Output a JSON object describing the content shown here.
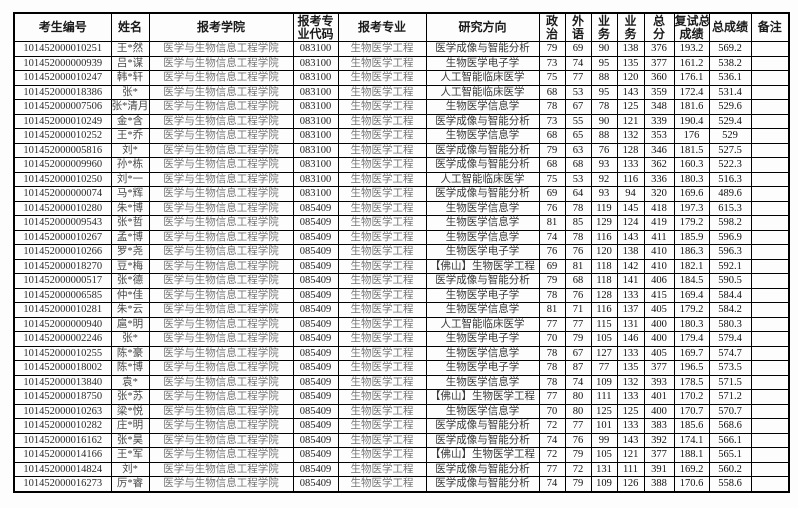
{
  "colors": {
    "background": "#ffffff",
    "table_border": "#000000",
    "header_text": "#1a1a1a",
    "body_text": "#1f1f1f",
    "muted_text": "#777777"
  },
  "table": {
    "column_keys": [
      "candidate-id",
      "name",
      "college",
      "major-code",
      "major",
      "research-direction",
      "politics",
      "foreign-language",
      "major-course-1",
      "major-course-2",
      "total-score",
      "retest-total-score",
      "final-score",
      "remarks"
    ],
    "column_headers": [
      {
        "lines": [
          "考生编号"
        ]
      },
      {
        "lines": [
          "姓名"
        ]
      },
      {
        "lines": [
          "报考学院"
        ]
      },
      {
        "lines": [
          "报考专",
          "业代码"
        ]
      },
      {
        "lines": [
          "报考专业"
        ]
      },
      {
        "lines": [
          "研究方向"
        ]
      },
      {
        "lines": [
          "政",
          "治"
        ]
      },
      {
        "lines": [
          "外",
          "语"
        ]
      },
      {
        "lines": [
          "业",
          "务"
        ]
      },
      {
        "lines": [
          "业",
          "务"
        ]
      },
      {
        "lines": [
          "总",
          "分"
        ]
      },
      {
        "lines": [
          "复试总",
          "成绩"
        ]
      },
      {
        "lines": [
          "总成绩"
        ]
      },
      {
        "lines": [
          "备注"
        ]
      }
    ],
    "rows": [
      [
        "101452000010251",
        "王*然",
        "医学与生物信息工程学院",
        "083100",
        "生物医学工程",
        "医学成像与智能分析",
        "79",
        "69",
        "90",
        "138",
        "376",
        "193.2",
        "569.2",
        ""
      ],
      [
        "101452000000939",
        "吕*谋",
        "医学与生物信息工程学院",
        "083100",
        "生物医学工程",
        "生物医学电子学",
        "73",
        "74",
        "95",
        "135",
        "377",
        "161.2",
        "538.2",
        ""
      ],
      [
        "101452000010247",
        "韩*轩",
        "医学与生物信息工程学院",
        "083100",
        "生物医学工程",
        "人工智能临床医学",
        "75",
        "77",
        "88",
        "120",
        "360",
        "176.1",
        "536.1",
        ""
      ],
      [
        "101452000018386",
        "张*",
        "医学与生物信息工程学院",
        "083100",
        "生物医学工程",
        "人工智能临床医学",
        "68",
        "53",
        "95",
        "143",
        "359",
        "172.4",
        "531.4",
        ""
      ],
      [
        "101452000007506",
        "张*清月",
        "医学与生物信息工程学院",
        "083100",
        "生物医学工程",
        "生物医学信息学",
        "78",
        "67",
        "78",
        "125",
        "348",
        "181.6",
        "529.6",
        ""
      ],
      [
        "101452000010249",
        "金*含",
        "医学与生物信息工程学院",
        "083100",
        "生物医学工程",
        "医学成像与智能分析",
        "73",
        "55",
        "90",
        "121",
        "339",
        "190.4",
        "529.4",
        ""
      ],
      [
        "101452000010252",
        "王*乔",
        "医学与生物信息工程学院",
        "083100",
        "生物医学工程",
        "生物医学信息学",
        "68",
        "65",
        "88",
        "132",
        "353",
        "176",
        "529",
        ""
      ],
      [
        "101452000005816",
        "刘*",
        "医学与生物信息工程学院",
        "083100",
        "生物医学工程",
        "医学成像与智能分析",
        "79",
        "63",
        "76",
        "128",
        "346",
        "181.5",
        "527.5",
        ""
      ],
      [
        "101452000009960",
        "孙*栋",
        "医学与生物信息工程学院",
        "083100",
        "生物医学工程",
        "医学成像与智能分析",
        "68",
        "68",
        "93",
        "133",
        "362",
        "160.3",
        "522.3",
        ""
      ],
      [
        "101452000010250",
        "刘*一",
        "医学与生物信息工程学院",
        "083100",
        "生物医学工程",
        "人工智能临床医学",
        "75",
        "53",
        "92",
        "116",
        "336",
        "180.3",
        "516.3",
        ""
      ],
      [
        "101452000000074",
        "马*辉",
        "医学与生物信息工程学院",
        "083100",
        "生物医学工程",
        "医学成像与智能分析",
        "69",
        "64",
        "93",
        "94",
        "320",
        "169.6",
        "489.6",
        ""
      ],
      [
        "101452000010280",
        "朱*博",
        "医学与生物信息工程学院",
        "085409",
        "生物医学工程",
        "生物医学信息学",
        "76",
        "78",
        "119",
        "145",
        "418",
        "197.3",
        "615.3",
        ""
      ],
      [
        "101452000009543",
        "张*哲",
        "医学与生物信息工程学院",
        "085409",
        "生物医学工程",
        "生物医学信息学",
        "81",
        "85",
        "129",
        "124",
        "419",
        "179.2",
        "598.2",
        ""
      ],
      [
        "101452000010267",
        "孟*博",
        "医学与生物信息工程学院",
        "085409",
        "生物医学工程",
        "生物医学信息学",
        "74",
        "78",
        "116",
        "143",
        "411",
        "185.9",
        "596.9",
        ""
      ],
      [
        "101452000010266",
        "罗*尧",
        "医学与生物信息工程学院",
        "085409",
        "生物医学工程",
        "生物医学电子学",
        "76",
        "76",
        "120",
        "138",
        "410",
        "186.3",
        "596.3",
        ""
      ],
      [
        "101452000018270",
        "豆*梅",
        "医学与生物信息工程学院",
        "085409",
        "生物医学工程",
        "【佛山】生物医学工程",
        "69",
        "81",
        "118",
        "142",
        "410",
        "182.1",
        "592.1",
        ""
      ],
      [
        "101452000000517",
        "张*德",
        "医学与生物信息工程学院",
        "085409",
        "生物医学工程",
        "医学成像与智能分析",
        "79",
        "68",
        "118",
        "141",
        "406",
        "184.5",
        "590.5",
        ""
      ],
      [
        "101452000006585",
        "仲*佳",
        "医学与生物信息工程学院",
        "085409",
        "生物医学工程",
        "生物医学电子学",
        "78",
        "76",
        "128",
        "133",
        "415",
        "169.4",
        "584.4",
        ""
      ],
      [
        "101452000010281",
        "朱*云",
        "医学与生物信息工程学院",
        "085409",
        "生物医学工程",
        "生物医学信息学",
        "81",
        "71",
        "116",
        "137",
        "405",
        "179.2",
        "584.2",
        ""
      ],
      [
        "101452000000940",
        "扈*明",
        "医学与生物信息工程学院",
        "085409",
        "生物医学工程",
        "人工智能临床医学",
        "77",
        "77",
        "115",
        "131",
        "400",
        "180.3",
        "580.3",
        ""
      ],
      [
        "101452000002246",
        "张*",
        "医学与生物信息工程学院",
        "085409",
        "生物医学工程",
        "生物医学电子学",
        "70",
        "79",
        "105",
        "146",
        "400",
        "179.4",
        "579.4",
        ""
      ],
      [
        "101452000010255",
        "陈*豪",
        "医学与生物信息工程学院",
        "085409",
        "生物医学工程",
        "生物医学信息学",
        "78",
        "67",
        "127",
        "133",
        "405",
        "169.7",
        "574.7",
        ""
      ],
      [
        "101452000018002",
        "陈*博",
        "医学与生物信息工程学院",
        "085409",
        "生物医学工程",
        "生物医学电子学",
        "78",
        "87",
        "77",
        "135",
        "377",
        "196.5",
        "573.5",
        ""
      ],
      [
        "101452000013840",
        "袁*",
        "医学与生物信息工程学院",
        "085409",
        "生物医学工程",
        "生物医学信息学",
        "78",
        "74",
        "109",
        "132",
        "393",
        "178.5",
        "571.5",
        ""
      ],
      [
        "101452000018750",
        "张*苏",
        "医学与生物信息工程学院",
        "085409",
        "生物医学工程",
        "【佛山】生物医学工程",
        "77",
        "80",
        "111",
        "133",
        "401",
        "170.2",
        "571.2",
        ""
      ],
      [
        "101452000010263",
        "梁*悦",
        "医学与生物信息工程学院",
        "085409",
        "生物医学工程",
        "生物医学信息学",
        "70",
        "80",
        "125",
        "125",
        "400",
        "170.7",
        "570.7",
        ""
      ],
      [
        "101452000010282",
        "庄*明",
        "医学与生物信息工程学院",
        "085409",
        "生物医学工程",
        "医学成像与智能分析",
        "72",
        "77",
        "101",
        "133",
        "383",
        "185.6",
        "568.6",
        ""
      ],
      [
        "101452000016162",
        "张*昊",
        "医学与生物信息工程学院",
        "085409",
        "生物医学工程",
        "医学成像与智能分析",
        "74",
        "76",
        "99",
        "143",
        "392",
        "174.1",
        "566.1",
        ""
      ],
      [
        "101452000014166",
        "王*军",
        "医学与生物信息工程学院",
        "085409",
        "生物医学工程",
        "【佛山】生物医学工程",
        "72",
        "79",
        "105",
        "121",
        "377",
        "188.1",
        "565.1",
        ""
      ],
      [
        "101452000014824",
        "刘*",
        "医学与生物信息工程学院",
        "085409",
        "生物医学工程",
        "医学成像与智能分析",
        "77",
        "72",
        "131",
        "111",
        "391",
        "169.2",
        "560.2",
        ""
      ],
      [
        "101452000016273",
        "厉*睿",
        "医学与生物信息工程学院",
        "085409",
        "生物医学工程",
        "医学成像与智能分析",
        "74",
        "79",
        "109",
        "126",
        "388",
        "170.6",
        "558.6",
        ""
      ]
    ]
  }
}
